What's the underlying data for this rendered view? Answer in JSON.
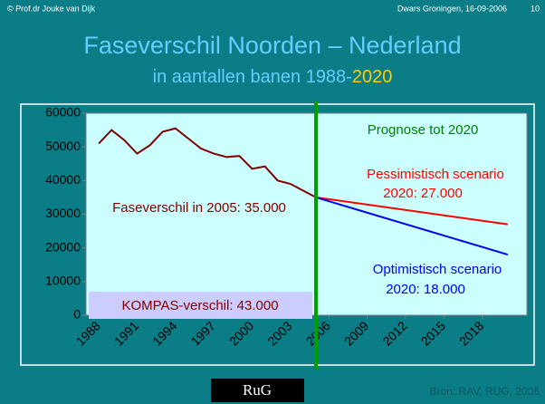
{
  "header": {
    "author": "© Prof.dr Jouke van Dijk",
    "event": "Dwars Groningen, 16-09-2006",
    "slide_number": "10"
  },
  "chart_data": {
    "type": "line",
    "title": "Faseverschil Noorden – Nederland",
    "subtitle": "in aantallen banen 1988-",
    "subtitle_highlight": "2020",
    "series": [
      {
        "name": "Faseverschil",
        "color": "#800000",
        "x": [
          1988,
          1989,
          1990,
          1991,
          1992,
          1993,
          1994,
          1995,
          1996,
          1997,
          1998,
          1999,
          2000,
          2001,
          2002,
          2003,
          2004,
          2005
        ],
        "values": [
          51000,
          55000,
          52000,
          48000,
          50500,
          54500,
          55500,
          52500,
          49500,
          48000,
          47000,
          47300,
          43500,
          44200,
          40000,
          39000,
          37000,
          35000
        ]
      },
      {
        "name": "Pessimistisch scenario",
        "color": "#ff0000",
        "x": [
          2005,
          2020
        ],
        "values": [
          35000,
          27000
        ]
      },
      {
        "name": "Optimistisch scenario",
        "color": "#0000ff",
        "x": [
          2005,
          2020
        ],
        "values": [
          35000,
          18000
        ]
      }
    ],
    "xlim": [
      1987,
      2021.5
    ],
    "xticks": [
      1988,
      1991,
      1994,
      1997,
      2000,
      2003,
      2006,
      2009,
      2012,
      2015,
      2018
    ],
    "ylim": [
      0,
      60000
    ],
    "yticks": [
      0,
      10000,
      20000,
      30000,
      40000,
      50000,
      60000
    ],
    "grid": false,
    "annotations": {
      "prognose": "Prognose tot 2020",
      "pess1": "Pessimistisch scenario",
      "pess2": "2020: 27.000",
      "fase": "Faseverschil in 2005: 35.000",
      "opt1": "Optimistisch scenario",
      "opt2": "2020: 18.000",
      "kompas": "KOMPAS-verschil: 43.000"
    },
    "source": "Bron: RAV, RUG, 2006"
  },
  "logo": "RuG"
}
